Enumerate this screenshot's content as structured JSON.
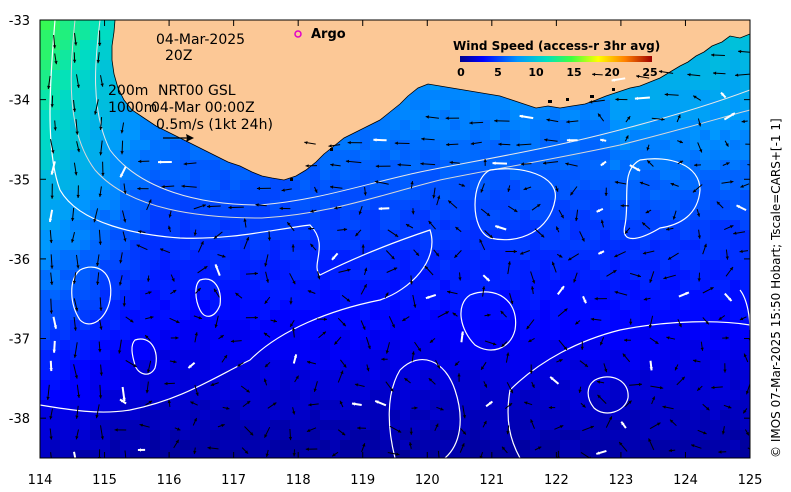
{
  "annotations": {
    "date": "04-Mar-2025",
    "time": "20Z",
    "contour_200": "200m",
    "contour_1000": "1000m",
    "product": "NRT00 GSL",
    "product_time": "04-Mar 00:00Z",
    "vector_scale": "0.5m/s (1kt 24h)"
  },
  "legend": {
    "title": "Wind Speed (access-r 3hr avg)",
    "ticks": [
      "0",
      "5",
      "10",
      "15",
      "20",
      "25"
    ],
    "range": [
      0,
      25
    ]
  },
  "argo": {
    "label": "Argo",
    "color": "#e000c8"
  },
  "credit": "© IMOS 07-Mar-2025 15:50 Hobart; Tscale=CARS+[-1 1]",
  "axes": {
    "x_ticks": [
      "114",
      "115",
      "116",
      "117",
      "118",
      "119",
      "120",
      "121",
      "122",
      "123",
      "124",
      "125"
    ],
    "y_ticks": [
      "-33",
      "-34",
      "-35",
      "-36",
      "-37",
      "-38"
    ],
    "lon_range": [
      114,
      125
    ],
    "lat_range": [
      -38.5,
      -33
    ]
  },
  "colors": {
    "land": "#fcc896",
    "coast": "#000000",
    "contour": "#ffffff"
  }
}
